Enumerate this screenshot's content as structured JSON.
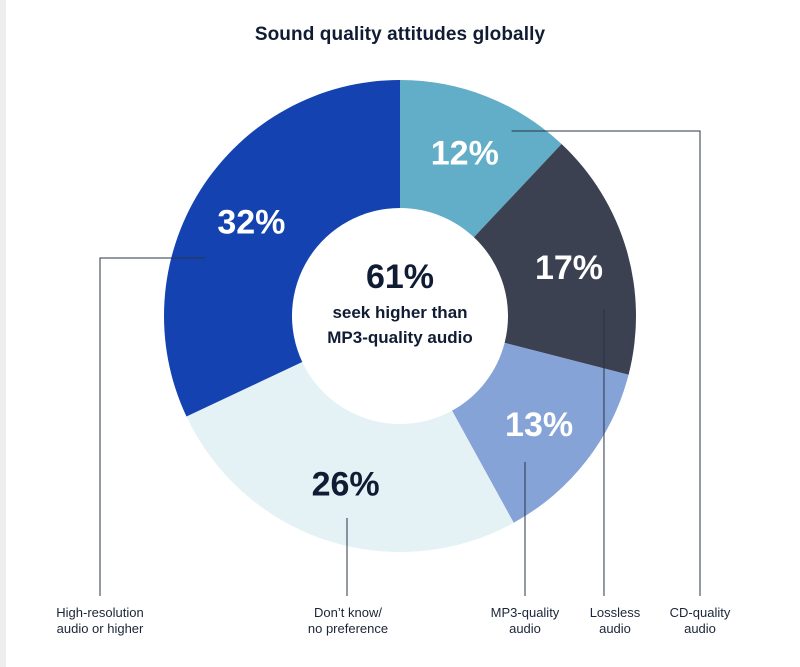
{
  "chart_data": {
    "type": "pie",
    "title": "Sound quality attitudes globally",
    "center_value": "61%",
    "center_text_line1": "seek higher than",
    "center_text_line2": "MP3-quality audio",
    "slices": [
      {
        "key": "cd",
        "value": 12,
        "display": "12%",
        "label_line1": "CD-quality",
        "label_line2": "audio",
        "color": "#62adc7",
        "text_color": "#ffffff"
      },
      {
        "key": "lossless",
        "value": 17,
        "display": "17%",
        "label_line1": "Lossless",
        "label_line2": "audio",
        "color": "#3b4150",
        "text_color": "#ffffff"
      },
      {
        "key": "mp3",
        "value": 13,
        "display": "13%",
        "label_line1": "MP3-quality",
        "label_line2": "audio",
        "color": "#86a3d8",
        "text_color": "#ffffff"
      },
      {
        "key": "dontknow",
        "value": 26,
        "display": "26%",
        "label_line1": "Don’t know/",
        "label_line2": "no preference",
        "color": "#e4f2f6",
        "text_color": "#0f1c33"
      },
      {
        "key": "hires",
        "value": 32,
        "display": "32%",
        "label_line1": "High-resolution",
        "label_line2": "audio or higher",
        "color": "#1443b1",
        "text_color": "#ffffff"
      }
    ]
  }
}
